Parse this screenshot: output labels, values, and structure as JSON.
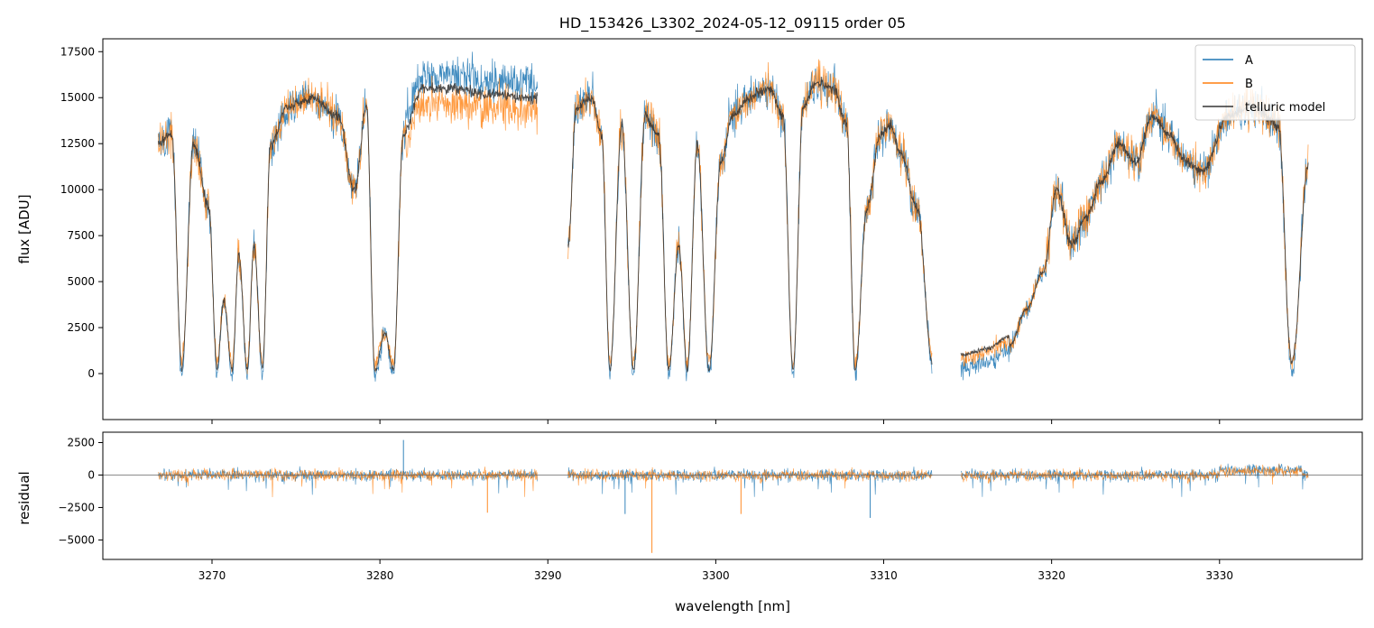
{
  "chart_data": [
    {
      "type": "line",
      "title": "HD_153426_L3302_2024-05-12_09115  order 05",
      "ylabel": "flux [ADU]",
      "xlim": [
        3263.5,
        3338.5
      ],
      "ylim": [
        -2500,
        18200
      ],
      "xticks": [
        3270,
        3280,
        3290,
        3300,
        3310,
        3320,
        3330
      ],
      "yticks": [
        0,
        2500,
        5000,
        7500,
        10000,
        12500,
        15000,
        17500
      ],
      "ytick_labels": [
        "0",
        "2500",
        "5000",
        "7500",
        "10000",
        "12500",
        "15000",
        "17500"
      ],
      "segments": [
        [
          3266.8,
          3289.4
        ],
        [
          3291.2,
          3312.9
        ],
        [
          3314.6,
          3335.3
        ]
      ],
      "legend": {
        "position": "top-right",
        "entries": [
          "A",
          "B",
          "telluric model"
        ]
      },
      "series": [
        {
          "name": "A",
          "color": "#1f77b4"
        },
        {
          "name": "B",
          "color": "#ff7f0e"
        },
        {
          "name": "telluric model",
          "color": "#333333"
        }
      ],
      "envelope_points": [
        [
          3266.8,
          12500
        ],
        [
          3267.6,
          13000
        ],
        [
          3268.2,
          300
        ],
        [
          3268.9,
          12500
        ],
        [
          3269.8,
          9000
        ],
        [
          3270.3,
          300
        ],
        [
          3270.7,
          4000
        ],
        [
          3271.2,
          200
        ],
        [
          3271.6,
          6500
        ],
        [
          3272.1,
          200
        ],
        [
          3272.5,
          7000
        ],
        [
          3273.0,
          300
        ],
        [
          3273.5,
          12500
        ],
        [
          3274.5,
          14500
        ],
        [
          3276.0,
          15000
        ],
        [
          3277.5,
          14000
        ],
        [
          3278.5,
          10000
        ],
        [
          3279.2,
          14500
        ],
        [
          3279.7,
          200
        ],
        [
          3280.3,
          2200
        ],
        [
          3280.8,
          200
        ],
        [
          3281.4,
          13000
        ],
        [
          3282.5,
          15500
        ],
        [
          3284.5,
          15500
        ],
        [
          3286.5,
          15200
        ],
        [
          3289.4,
          15000
        ],
        [
          3291.2,
          7000
        ],
        [
          3291.7,
          14500
        ],
        [
          3292.6,
          15000
        ],
        [
          3293.2,
          13000
        ],
        [
          3293.7,
          200
        ],
        [
          3294.4,
          13500
        ],
        [
          3295.1,
          200
        ],
        [
          3295.8,
          14000
        ],
        [
          3296.6,
          13000
        ],
        [
          3297.2,
          200
        ],
        [
          3297.8,
          7000
        ],
        [
          3298.3,
          200
        ],
        [
          3298.9,
          12500
        ],
        [
          3299.6,
          200
        ],
        [
          3300.3,
          11500
        ],
        [
          3301.0,
          14000
        ],
        [
          3302.0,
          15000
        ],
        [
          3303.2,
          15500
        ],
        [
          3304.0,
          14000
        ],
        [
          3304.6,
          200
        ],
        [
          3305.2,
          14500
        ],
        [
          3306.0,
          15800
        ],
        [
          3307.0,
          15500
        ],
        [
          3307.8,
          13500
        ],
        [
          3308.3,
          200
        ],
        [
          3309.0,
          9000
        ],
        [
          3309.8,
          13000
        ],
        [
          3310.4,
          13500
        ],
        [
          3311.0,
          12000
        ],
        [
          3312.0,
          9000
        ],
        [
          3312.9,
          600
        ],
        [
          3314.6,
          500
        ],
        [
          3316.0,
          800
        ],
        [
          3317.5,
          1500
        ],
        [
          3318.5,
          3500
        ],
        [
          3319.5,
          5500
        ],
        [
          3320.3,
          10000
        ],
        [
          3321.2,
          7000
        ],
        [
          3322.0,
          8500
        ],
        [
          3323.0,
          10500
        ],
        [
          3324.0,
          12500
        ],
        [
          3325.0,
          11500
        ],
        [
          3326.0,
          14000
        ],
        [
          3327.0,
          13000
        ],
        [
          3328.0,
          11500
        ],
        [
          3329.0,
          11000
        ],
        [
          3330.5,
          14000
        ],
        [
          3332.0,
          14500
        ],
        [
          3333.5,
          13500
        ],
        [
          3334.3,
          200
        ],
        [
          3335.3,
          11500
        ]
      ]
    },
    {
      "type": "line",
      "xlabel": "wavelength [nm]",
      "ylabel": "residual",
      "xlim": [
        3263.5,
        3338.5
      ],
      "ylim": [
        -6500,
        3300
      ],
      "yticks": [
        -5000,
        -2500,
        0,
        2500
      ],
      "ytick_labels": [
        "−5000",
        "−2500",
        "0",
        "2500"
      ],
      "zero_line": true,
      "outliers": [
        [
          3281.4,
          2700
        ],
        [
          3296.2,
          -6000
        ],
        [
          3294.6,
          -3000
        ],
        [
          3301.5,
          -3000
        ],
        [
          3309.2,
          -3300
        ],
        [
          3286.4,
          -2900
        ]
      ]
    }
  ]
}
